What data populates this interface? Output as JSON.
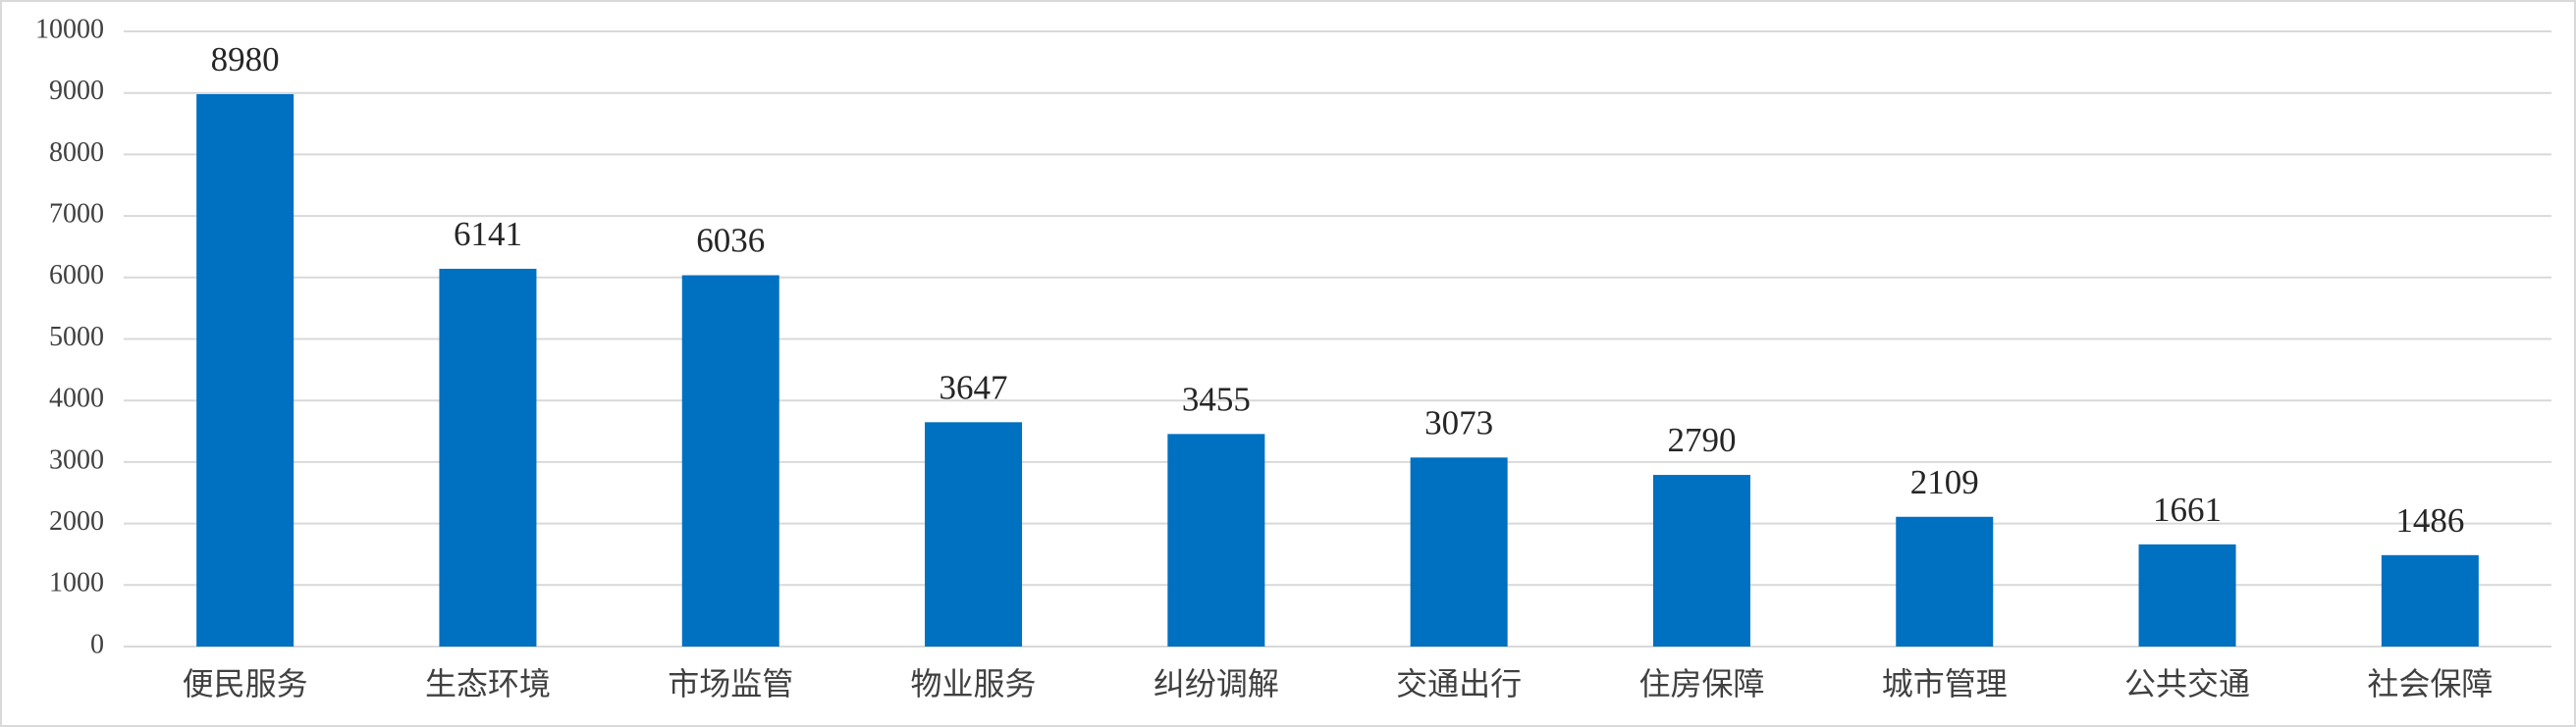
{
  "chart_data": {
    "type": "bar",
    "categories": [
      "便民服务",
      "生态环境",
      "市场监管",
      "物业服务",
      "纠纷调解",
      "交通出行",
      "住房保障",
      "城市管理",
      "公共交通",
      "社会保障"
    ],
    "values": [
      8980,
      6141,
      6036,
      3647,
      3455,
      3073,
      2790,
      2109,
      1661,
      1486
    ],
    "color": "#0070c0",
    "ylim": [
      0,
      10000
    ],
    "yticks": [
      0,
      1000,
      2000,
      3000,
      4000,
      5000,
      6000,
      7000,
      8000,
      9000,
      10000
    ],
    "grid": true,
    "data_labels": true
  }
}
